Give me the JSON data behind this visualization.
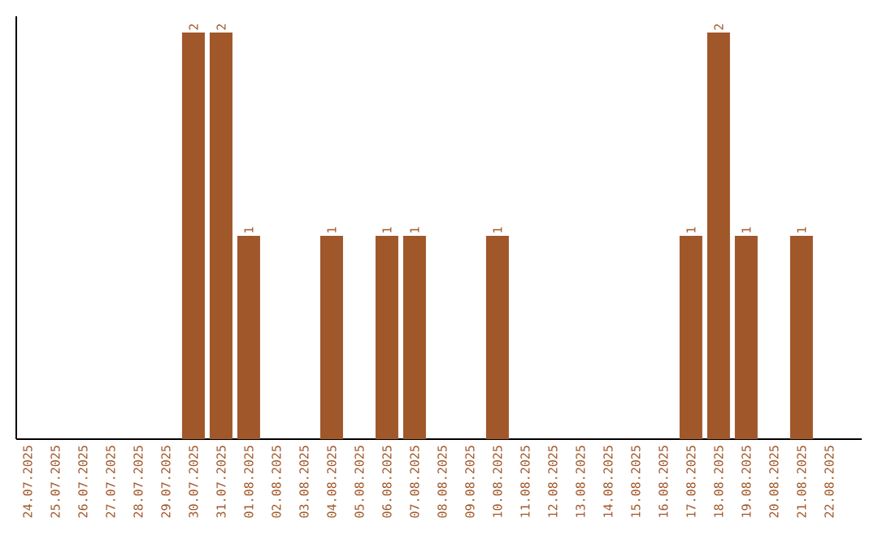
{
  "chart_data": {
    "type": "bar",
    "categories": [
      "24.07.2025",
      "25.07.2025",
      "26.07.2025",
      "27.07.2025",
      "28.07.2025",
      "29.07.2025",
      "30.07.2025",
      "31.07.2025",
      "01.08.2025",
      "02.08.2025",
      "03.08.2025",
      "04.08.2025",
      "05.08.2025",
      "06.08.2025",
      "07.08.2025",
      "08.08.2025",
      "09.08.2025",
      "10.08.2025",
      "11.08.2025",
      "12.08.2025",
      "13.08.2025",
      "14.08.2025",
      "15.08.2025",
      "16.08.2025",
      "17.08.2025",
      "18.08.2025",
      "19.08.2025",
      "20.08.2025",
      "21.08.2025",
      "22.08.2025"
    ],
    "values": [
      0,
      0,
      0,
      0,
      0,
      0,
      2,
      2,
      1,
      0,
      0,
      1,
      0,
      1,
      1,
      0,
      0,
      1,
      0,
      0,
      0,
      0,
      0,
      0,
      1,
      2,
      1,
      0,
      1,
      0
    ],
    "value_labels": [
      null,
      null,
      null,
      null,
      null,
      null,
      "2",
      "2",
      "1",
      null,
      null,
      "1",
      null,
      "1",
      "1",
      null,
      null,
      "1",
      null,
      null,
      null,
      null,
      null,
      null,
      "1",
      "2",
      "1",
      null,
      "1",
      null
    ],
    "color": "#a0572a"
  }
}
